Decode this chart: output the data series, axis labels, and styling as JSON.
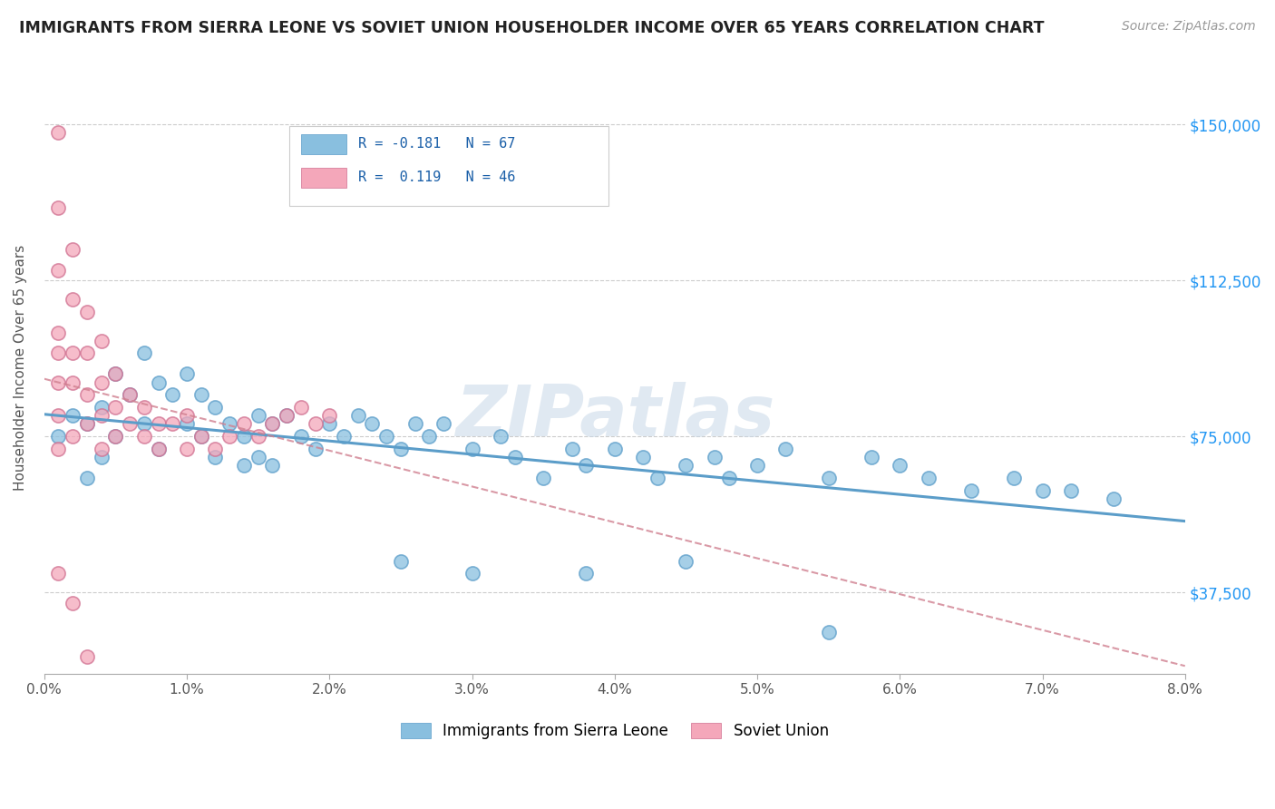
{
  "title": "IMMIGRANTS FROM SIERRA LEONE VS SOVIET UNION HOUSEHOLDER INCOME OVER 65 YEARS CORRELATION CHART",
  "source": "Source: ZipAtlas.com",
  "ylabel": "Householder Income Over 65 years",
  "yticks": [
    37500,
    75000,
    112500,
    150000
  ],
  "ytick_labels": [
    "$37,500",
    "$75,000",
    "$112,500",
    "$150,000"
  ],
  "xlim": [
    0.0,
    0.08
  ],
  "ylim": [
    18000,
    165000
  ],
  "legend_label_sierra": "Immigrants from Sierra Leone",
  "legend_label_soviet": "Soviet Union",
  "color_sierra": "#89bfdf",
  "color_soviet": "#f4a7ba",
  "color_sierra_line": "#5b9dc9",
  "color_soviet_line": "#d07090",
  "watermark": "ZIPatlas",
  "sierra_x": [
    0.001,
    0.002,
    0.003,
    0.003,
    0.004,
    0.004,
    0.005,
    0.005,
    0.006,
    0.007,
    0.007,
    0.008,
    0.008,
    0.009,
    0.01,
    0.01,
    0.011,
    0.011,
    0.012,
    0.012,
    0.013,
    0.014,
    0.014,
    0.015,
    0.015,
    0.016,
    0.017,
    0.018,
    0.019,
    0.02,
    0.021,
    0.022,
    0.023,
    0.024,
    0.025,
    0.026,
    0.027,
    0.028,
    0.03,
    0.032,
    0.033,
    0.035,
    0.037,
    0.038,
    0.04,
    0.042,
    0.043,
    0.045,
    0.047,
    0.048,
    0.05,
    0.052,
    0.055,
    0.058,
    0.06,
    0.062,
    0.065,
    0.068,
    0.07,
    0.072,
    0.075,
    0.016,
    0.025,
    0.03,
    0.038,
    0.045,
    0.055
  ],
  "sierra_y": [
    75000,
    80000,
    78000,
    65000,
    82000,
    70000,
    90000,
    75000,
    85000,
    95000,
    78000,
    88000,
    72000,
    85000,
    90000,
    78000,
    85000,
    75000,
    82000,
    70000,
    78000,
    75000,
    68000,
    80000,
    70000,
    78000,
    80000,
    75000,
    72000,
    78000,
    75000,
    80000,
    78000,
    75000,
    72000,
    78000,
    75000,
    78000,
    72000,
    75000,
    70000,
    65000,
    72000,
    68000,
    72000,
    70000,
    65000,
    68000,
    70000,
    65000,
    68000,
    72000,
    65000,
    70000,
    68000,
    65000,
    62000,
    65000,
    62000,
    62000,
    60000,
    68000,
    45000,
    42000,
    42000,
    45000,
    28000
  ],
  "soviet_x": [
    0.001,
    0.001,
    0.001,
    0.001,
    0.001,
    0.001,
    0.001,
    0.001,
    0.002,
    0.002,
    0.002,
    0.002,
    0.002,
    0.003,
    0.003,
    0.003,
    0.003,
    0.004,
    0.004,
    0.004,
    0.004,
    0.005,
    0.005,
    0.005,
    0.006,
    0.006,
    0.007,
    0.007,
    0.008,
    0.008,
    0.009,
    0.01,
    0.01,
    0.011,
    0.012,
    0.013,
    0.014,
    0.015,
    0.016,
    0.017,
    0.018,
    0.019,
    0.02,
    0.001,
    0.002,
    0.003
  ],
  "soviet_y": [
    148000,
    130000,
    115000,
    100000,
    95000,
    88000,
    80000,
    72000,
    120000,
    108000,
    95000,
    88000,
    75000,
    105000,
    95000,
    85000,
    78000,
    98000,
    88000,
    80000,
    72000,
    90000,
    82000,
    75000,
    85000,
    78000,
    82000,
    75000,
    78000,
    72000,
    78000,
    80000,
    72000,
    75000,
    72000,
    75000,
    78000,
    75000,
    78000,
    80000,
    82000,
    78000,
    80000,
    42000,
    35000,
    22000
  ]
}
